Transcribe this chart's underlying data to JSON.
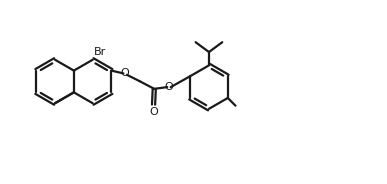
{
  "background_color": "#ffffff",
  "line_color": "#1a1a1a",
  "line_width": 1.6,
  "label_br": "Br",
  "label_o1": "O",
  "label_o2": "O",
  "label_o3": "O",
  "figsize": [
    3.87,
    1.84
  ],
  "dpi": 100
}
